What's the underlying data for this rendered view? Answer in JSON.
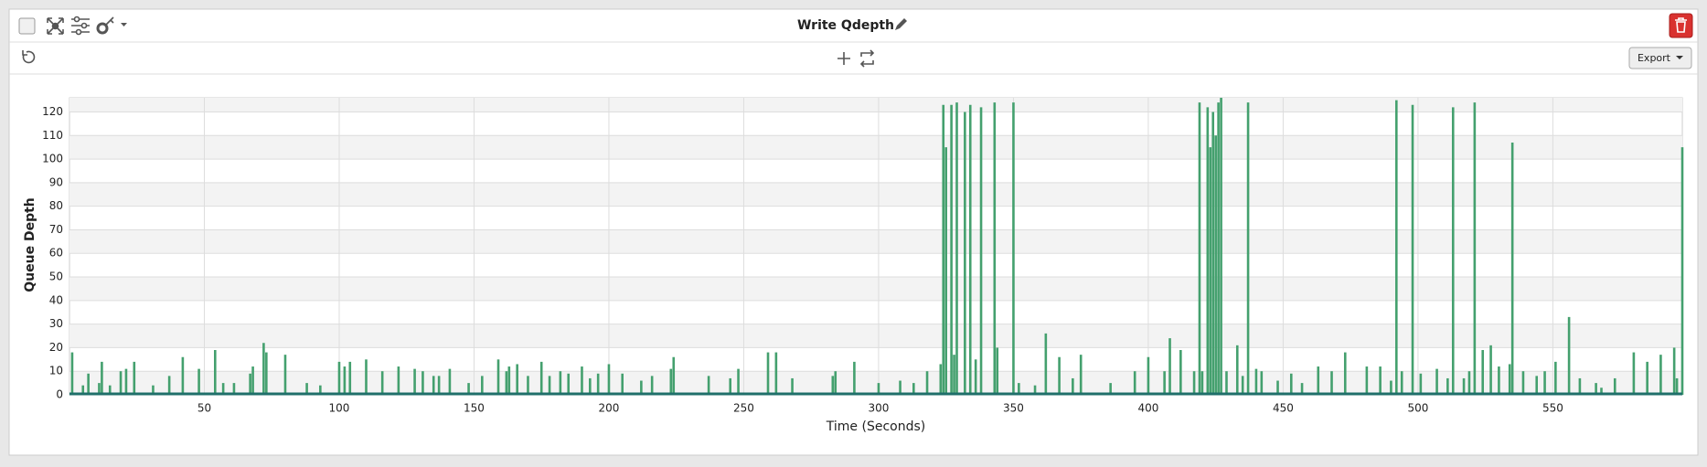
{
  "export_button": "Export",
  "chart_data": {
    "type": "spike",
    "title": "Write Qdepth",
    "x_label": "Time (Seconds)",
    "y_label": "Queue Depth",
    "xlim": [
      0,
      598
    ],
    "xticks": [
      50,
      100,
      150,
      200,
      250,
      300,
      350,
      400,
      450,
      500,
      550
    ],
    "ylim": [
      0,
      126
    ],
    "yticks": [
      0,
      10,
      20,
      30,
      40,
      50,
      60,
      70,
      80,
      90,
      100,
      110,
      120
    ],
    "grid": true,
    "series": [
      {
        "color": "#44a06e",
        "x": [
          1,
          5,
          7,
          11,
          12,
          15,
          19,
          21,
          24,
          31,
          37,
          42,
          48,
          54,
          57,
          61,
          67,
          68,
          72,
          73,
          80,
          88,
          93,
          100,
          102,
          104,
          110,
          116,
          122,
          128,
          131,
          135,
          137,
          141,
          148,
          153,
          159,
          162,
          163,
          166,
          170,
          175,
          178,
          182,
          185,
          190,
          193,
          196,
          200,
          205,
          212,
          216,
          223,
          224,
          237,
          245,
          248,
          259,
          262,
          268,
          283,
          284,
          291,
          300,
          308,
          313,
          318,
          323,
          324,
          325,
          327,
          328,
          329,
          332,
          334,
          336,
          338,
          343,
          344,
          350,
          352,
          358,
          362,
          367,
          372,
          375,
          386,
          395,
          400,
          406,
          408,
          412,
          417,
          419,
          420,
          422,
          423,
          424,
          425,
          426,
          427,
          429,
          433,
          435,
          437,
          440,
          442,
          448,
          453,
          457,
          463,
          468,
          473,
          481,
          486,
          490,
          492,
          494,
          498,
          501,
          507,
          511,
          513,
          517,
          519,
          521,
          524,
          527,
          530,
          534,
          535,
          539,
          544,
          547,
          551,
          556,
          560,
          566,
          568,
          573,
          580,
          585,
          590,
          595,
          596,
          598
        ],
        "values": [
          18,
          4,
          9,
          5,
          14,
          4,
          10,
          11,
          14,
          4,
          8,
          16,
          11,
          19,
          5,
          5,
          9,
          12,
          22,
          18,
          17,
          5,
          4,
          14,
          12,
          14,
          15,
          10,
          12,
          11,
          10,
          8,
          8,
          11,
          5,
          8,
          15,
          10,
          12,
          13,
          8,
          14,
          8,
          10,
          9,
          12,
          7,
          9,
          13,
          9,
          6,
          8,
          11,
          16,
          8,
          7,
          11,
          18,
          18,
          7,
          8,
          10,
          14,
          5,
          6,
          5,
          10,
          13,
          123,
          105,
          123,
          17,
          124,
          120,
          123,
          15,
          122,
          124,
          20,
          124,
          5,
          4,
          26,
          16,
          7,
          17,
          5,
          10,
          16,
          10,
          24,
          19,
          10,
          124,
          10,
          122,
          105,
          120,
          110,
          124,
          126,
          10,
          21,
          8,
          124,
          11,
          10,
          6,
          9,
          5,
          12,
          10,
          18,
          12,
          12,
          6,
          125,
          10,
          123,
          9,
          11,
          7,
          122,
          7,
          10,
          124,
          19,
          21,
          12,
          13,
          107,
          10,
          8,
          10,
          14,
          33,
          7,
          5,
          3,
          7,
          18,
          14,
          17,
          20,
          7,
          105
        ]
      }
    ]
  }
}
